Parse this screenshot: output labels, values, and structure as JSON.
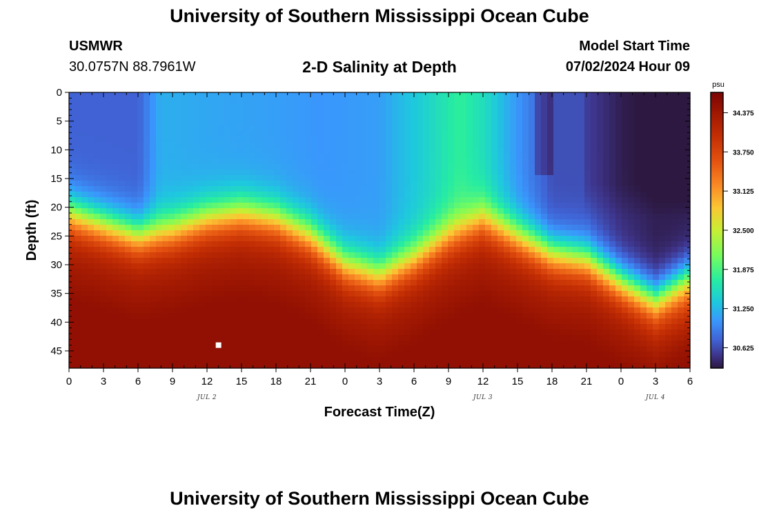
{
  "header": {
    "title": "University of Southern Mississippi Ocean Cube",
    "station": "USMWR",
    "coords": "30.0757N  88.7961W",
    "subtitle": "2-D Salinity at Depth",
    "model_start_label": "Model Start Time",
    "model_start_value": "07/02/2024 Hour 09"
  },
  "footer": {
    "title": "University of Southern Mississippi Ocean Cube"
  },
  "chart_data": {
    "type": "heatmap",
    "title": "2-D Salinity at Depth",
    "xlabel": "Forecast Time(Z)",
    "ylabel": "Depth (ft)",
    "x_tick_labels": [
      "0",
      "3",
      "6",
      "9",
      "12",
      "15",
      "18",
      "21",
      "0",
      "3",
      "6",
      "9",
      "12",
      "15",
      "18",
      "21",
      "0",
      "3",
      "6"
    ],
    "x_tick_hours": [
      0,
      3,
      6,
      9,
      12,
      15,
      18,
      21,
      24,
      27,
      30,
      33,
      36,
      39,
      42,
      45,
      48,
      51,
      54
    ],
    "xlim_hours": [
      0,
      54
    ],
    "date_labels": [
      {
        "text": "JUL 2",
        "hour": 12
      },
      {
        "text": "JUL 3",
        "hour": 36
      },
      {
        "text": "JUL 4",
        "hour": 51
      }
    ],
    "y_ticks": [
      "0",
      "5",
      "10",
      "15",
      "20",
      "25",
      "30",
      "35",
      "40",
      "45"
    ],
    "y_tick_values": [
      0,
      5,
      10,
      15,
      20,
      25,
      30,
      35,
      40,
      45
    ],
    "ylim": [
      0,
      48
    ],
    "y_inverted": true,
    "colorbar": {
      "unit": "psu",
      "ticks": [
        "34.375",
        "33.750",
        "33.125",
        "32.500",
        "31.875",
        "31.250",
        "30.625"
      ],
      "tick_values": [
        34.375,
        33.75,
        33.125,
        32.5,
        31.875,
        31.25,
        30.625
      ],
      "range": [
        30.3,
        34.7
      ]
    },
    "model": {
      "interface_depth_ft": [
        [
          0,
          21
        ],
        [
          3,
          23
        ],
        [
          6,
          25
        ],
        [
          9,
          24
        ],
        [
          12,
          22
        ],
        [
          15,
          21
        ],
        [
          18,
          22
        ],
        [
          21,
          25
        ],
        [
          24,
          30
        ],
        [
          27,
          32
        ],
        [
          30,
          29
        ],
        [
          33,
          25
        ],
        [
          36,
          22
        ],
        [
          39,
          25
        ],
        [
          42,
          28
        ],
        [
          45,
          29
        ],
        [
          48,
          33
        ],
        [
          51,
          36
        ],
        [
          54,
          32
        ]
      ],
      "upper_salinity": [
        [
          0,
          30.75
        ],
        [
          6,
          30.75
        ],
        [
          8,
          31.2
        ],
        [
          12,
          31.15
        ],
        [
          18,
          31.1
        ],
        [
          22,
          31.05
        ],
        [
          27,
          31.1
        ],
        [
          31,
          31.45
        ],
        [
          34,
          31.75
        ],
        [
          36,
          31.55
        ],
        [
          39,
          31.05
        ],
        [
          42,
          30.65
        ],
        [
          45,
          30.65
        ],
        [
          48,
          30.45
        ],
        [
          51,
          30.35
        ],
        [
          54,
          30.35
        ]
      ],
      "sampled_point": {
        "hour": 13,
        "depth_ft": 44
      }
    }
  }
}
